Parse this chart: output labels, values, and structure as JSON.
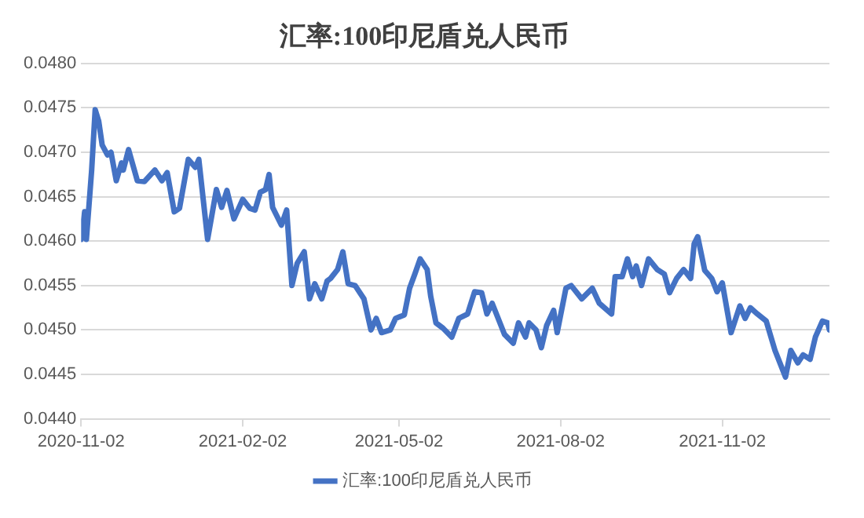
{
  "chart_data": {
    "type": "line",
    "title": "汇率:100印尼盾兑人民币",
    "x": [
      "2020-11-02",
      "2020-11-04",
      "2020-11-05",
      "2020-11-08",
      "2020-11-10",
      "2020-11-12",
      "2020-11-14",
      "2020-11-17",
      "2020-11-19",
      "2020-11-22",
      "2020-11-25",
      "2020-11-26",
      "2020-11-29",
      "2020-12-04",
      "2020-12-08",
      "2020-12-14",
      "2020-12-18",
      "2020-12-21",
      "2020-12-25",
      "2020-12-28",
      "2021-01-02",
      "2021-01-06",
      "2021-01-08",
      "2021-01-13",
      "2021-01-18",
      "2021-01-21",
      "2021-01-24",
      "2021-01-28",
      "2021-02-02",
      "2021-02-06",
      "2021-02-09",
      "2021-02-12",
      "2021-02-15",
      "2021-02-17",
      "2021-02-19",
      "2021-02-24",
      "2021-02-27",
      "2021-03-02",
      "2021-03-05",
      "2021-03-09",
      "2021-03-12",
      "2021-03-15",
      "2021-03-19",
      "2021-03-22",
      "2021-03-24",
      "2021-03-28",
      "2021-03-31",
      "2021-04-03",
      "2021-04-07",
      "2021-04-12",
      "2021-04-16",
      "2021-04-19",
      "2021-04-22",
      "2021-04-27",
      "2021-04-30",
      "2021-05-05",
      "2021-05-08",
      "2021-05-11",
      "2021-05-14",
      "2021-05-18",
      "2021-05-20",
      "2021-05-23",
      "2021-05-27",
      "2021-06-01",
      "2021-06-05",
      "2021-06-10",
      "2021-06-14",
      "2021-06-18",
      "2021-06-21",
      "2021-06-24",
      "2021-06-28",
      "2021-07-01",
      "2021-07-06",
      "2021-07-09",
      "2021-07-13",
      "2021-07-15",
      "2021-07-19",
      "2021-07-22",
      "2021-07-25",
      "2021-07-29",
      "2021-07-31",
      "2021-08-05",
      "2021-08-08",
      "2021-08-14",
      "2021-08-20",
      "2021-08-24",
      "2021-08-31",
      "2021-09-02",
      "2021-09-06",
      "2021-09-09",
      "2021-09-12",
      "2021-09-14",
      "2021-09-17",
      "2021-09-21",
      "2021-09-26",
      "2021-09-30",
      "2021-10-03",
      "2021-10-07",
      "2021-10-11",
      "2021-10-15",
      "2021-10-17",
      "2021-10-19",
      "2021-10-23",
      "2021-10-27",
      "2021-10-30",
      "2021-11-02",
      "2021-11-07",
      "2021-11-12",
      "2021-11-15",
      "2021-11-18",
      "2021-11-22",
      "2021-11-27",
      "2021-12-02",
      "2021-12-08",
      "2021-12-11",
      "2021-12-15",
      "2021-12-18",
      "2021-12-22",
      "2021-12-25",
      "2021-12-29",
      "2022-01-01",
      "2022-01-02"
    ],
    "series": [
      {
        "name": "汇率:100印尼盾兑人民币",
        "color": "#4472c4",
        "values": [
          0.04602,
          0.04633,
          0.04602,
          0.0468,
          0.04748,
          0.04735,
          0.04708,
          0.04697,
          0.047,
          0.04668,
          0.04688,
          0.0468,
          0.04703,
          0.04668,
          0.04667,
          0.0468,
          0.04668,
          0.04677,
          0.04633,
          0.04637,
          0.04692,
          0.04683,
          0.04692,
          0.04602,
          0.04658,
          0.04638,
          0.04657,
          0.04625,
          0.04647,
          0.04637,
          0.04635,
          0.04655,
          0.04658,
          0.04675,
          0.04638,
          0.04618,
          0.04635,
          0.0455,
          0.04575,
          0.04588,
          0.04535,
          0.04552,
          0.04535,
          0.04555,
          0.04558,
          0.04568,
          0.04588,
          0.04552,
          0.0455,
          0.04535,
          0.045,
          0.04513,
          0.04497,
          0.045,
          0.04513,
          0.04517,
          0.04547,
          0.04563,
          0.0458,
          0.04568,
          0.04538,
          0.04508,
          0.04502,
          0.04492,
          0.04513,
          0.04518,
          0.04543,
          0.04542,
          0.04518,
          0.0453,
          0.0451,
          0.04495,
          0.04485,
          0.04508,
          0.04492,
          0.04508,
          0.045,
          0.0448,
          0.04505,
          0.04522,
          0.04497,
          0.04547,
          0.0455,
          0.04535,
          0.04547,
          0.0453,
          0.04518,
          0.0456,
          0.0456,
          0.0458,
          0.0456,
          0.04572,
          0.0455,
          0.0458,
          0.04568,
          0.04563,
          0.04542,
          0.04558,
          0.04568,
          0.04558,
          0.04597,
          0.04605,
          0.04567,
          0.04558,
          0.04543,
          0.04553,
          0.04497,
          0.04527,
          0.04513,
          0.04525,
          0.04518,
          0.0451,
          0.04477,
          0.04447,
          0.04477,
          0.04463,
          0.04472,
          0.04467,
          0.04492,
          0.0451,
          0.04508,
          0.045
        ]
      }
    ],
    "xlim": [
      "2020-11-02",
      "2022-01-02"
    ],
    "xticks": [
      "2020-11-02",
      "2021-02-02",
      "2021-05-02",
      "2021-08-02",
      "2021-11-02"
    ],
    "ylim": [
      0.044,
      0.048
    ],
    "yticks": [
      {
        "value": 0.044,
        "label": "0.0440"
      },
      {
        "value": 0.0445,
        "label": "0.0445"
      },
      {
        "value": 0.045,
        "label": "0.0450"
      },
      {
        "value": 0.0455,
        "label": "0.0455"
      },
      {
        "value": 0.046,
        "label": "0.0460"
      },
      {
        "value": 0.0465,
        "label": "0.0465"
      },
      {
        "value": 0.047,
        "label": "0.0470"
      },
      {
        "value": 0.0475,
        "label": "0.0475"
      },
      {
        "value": 0.048,
        "label": "0.0480"
      }
    ],
    "grid": "y",
    "legend": "bottom",
    "marker": "none",
    "line_style": "solid"
  }
}
